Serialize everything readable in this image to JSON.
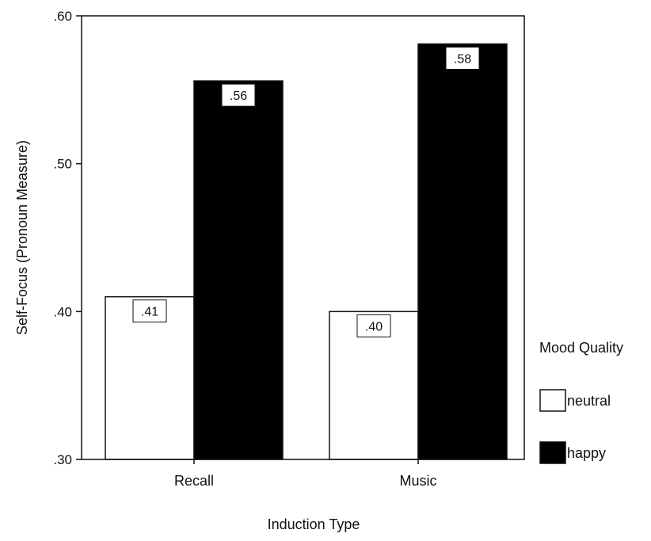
{
  "chart_data": {
    "type": "bar",
    "xlabel": "Induction Type",
    "ylabel": "Self-Focus (Pronoun Measure)",
    "categories": [
      "Recall",
      "Music"
    ],
    "series": [
      {
        "name": "neutral",
        "values": [
          0.41,
          0.4
        ],
        "labels": [
          ".41",
          ".40"
        ],
        "color": "#ffffff"
      },
      {
        "name": "happy",
        "values": [
          0.556,
          0.581
        ],
        "labels": [
          ".56",
          ".58"
        ],
        "color": "#000000"
      }
    ],
    "ylim": [
      0.3,
      0.6
    ],
    "yticks": [
      0.3,
      0.4,
      0.5,
      0.6
    ],
    "ytick_labels": [
      ".30",
      ".40",
      ".50",
      ".60"
    ],
    "legend": {
      "title": "Mood Quality",
      "placement": "right"
    },
    "grid": false
  }
}
